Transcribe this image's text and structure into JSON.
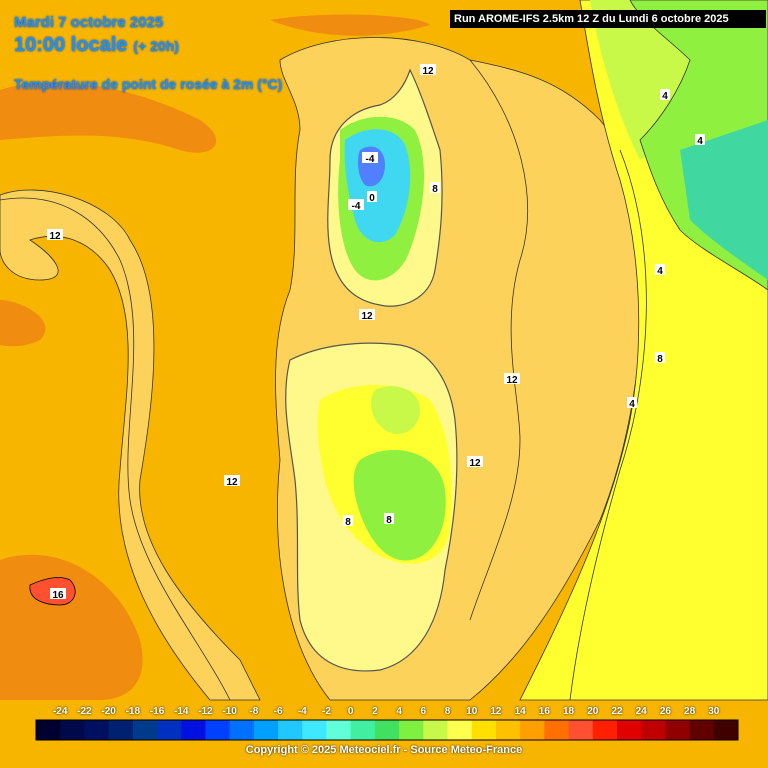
{
  "title": {
    "date": "Mardi 7 octobre 2025",
    "time": "10:00 locale",
    "offset": "(+ 20h)",
    "variable": "Température de point de rosée à 2m (°C)"
  },
  "run_label": "Run AROME-IFS 2.5km 12 Z du Lundi 6 octobre 2025",
  "copyright": "Copyright © 2025 Meteociel.fr - Source Meteo-France",
  "map_labels": [
    {
      "text": "12"
    },
    {
      "text": "12"
    },
    {
      "text": "12"
    },
    {
      "text": "12"
    },
    {
      "text": "12"
    },
    {
      "text": "12"
    },
    {
      "text": "16"
    },
    {
      "text": "-4"
    },
    {
      "text": "-4"
    },
    {
      "text": "0"
    },
    {
      "text": "8"
    },
    {
      "text": "4"
    },
    {
      "text": "8"
    },
    {
      "text": "4"
    },
    {
      "text": "8"
    },
    {
      "text": "8"
    },
    {
      "text": "4"
    },
    {
      "text": "4"
    }
  ],
  "legend": {
    "ticks": [
      "-24",
      "-22",
      "-20",
      "-18",
      "-16",
      "-14",
      "-12",
      "-10",
      "-8",
      "-6",
      "-4",
      "-2",
      "0",
      "2",
      "4",
      "6",
      "8",
      "10",
      "12",
      "14",
      "16",
      "18",
      "20",
      "22",
      "24",
      "26",
      "28",
      "30"
    ],
    "colors": [
      "#000030",
      "#000a4a",
      "#001060",
      "#002070",
      "#003a8a",
      "#0030c0",
      "#0010e0",
      "#0040ff",
      "#0070ff",
      "#00a0ff",
      "#20c8ff",
      "#40e8ff",
      "#60ffd8",
      "#40f0a0",
      "#40e060",
      "#80f040",
      "#c8f848",
      "#ffff50",
      "#ffe000",
      "#ffc000",
      "#ffa000",
      "#ff7000",
      "#ff5030",
      "#ff2000",
      "#e00000",
      "#c00000",
      "#900000",
      "#600000",
      "#400000"
    ]
  },
  "colors": {
    "sea_background": "#f7b500",
    "dark_orange_streak": "#f08c10",
    "light_orange": "#fcd25a",
    "pale_yellow": "#fff88a",
    "yellow": "#ffff30",
    "green": "#90f040",
    "teal": "#40d8a0",
    "cyan": "#40d8f0",
    "blue": "#5080ff"
  }
}
